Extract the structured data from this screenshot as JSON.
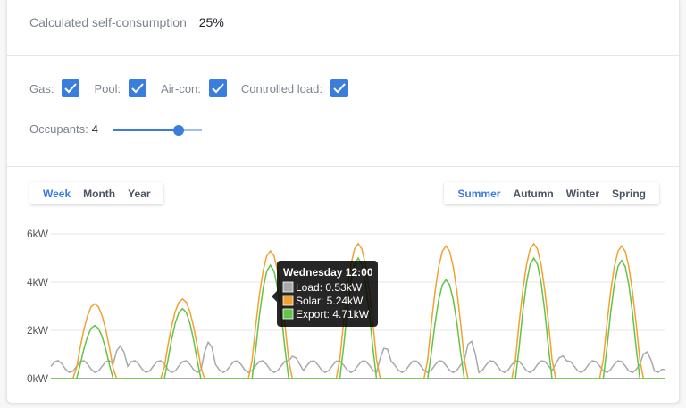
{
  "self_consumption": {
    "label": "Calculated self-consumption",
    "value": "25%"
  },
  "options": [
    {
      "label": "Gas:",
      "checked": true
    },
    {
      "label": "Pool:",
      "checked": true
    },
    {
      "label": "Air-con:",
      "checked": true
    },
    {
      "label": "Controlled load:",
      "checked": true
    }
  ],
  "occupants": {
    "label": "Occupants:",
    "value": "4",
    "slider_fraction": 0.75
  },
  "period_tabs": {
    "items": [
      "Week",
      "Month",
      "Year"
    ],
    "active": "Week"
  },
  "season_tabs": {
    "items": [
      "Summer",
      "Autumn",
      "Winter",
      "Spring"
    ],
    "active": "Summer"
  },
  "colors": {
    "accent": "#3b7ddd",
    "load": "#a9a9a9",
    "solar": "#f0a232",
    "export": "#63c447"
  },
  "chart_data": {
    "type": "line",
    "y_ticks": [
      "6kW",
      "4kW",
      "2kW",
      "0kW"
    ],
    "ylim": [
      0,
      6
    ],
    "days": 7,
    "series": [
      {
        "name": "Load",
        "daily_peaks_kw": [
          1.6,
          1.3,
          1.0,
          1.2,
          1.5,
          1.0,
          0.9
        ]
      },
      {
        "name": "Solar",
        "daily_peaks_kw": [
          3.1,
          3.3,
          5.3,
          5.6,
          5.5,
          5.6,
          5.5
        ]
      },
      {
        "name": "Export",
        "daily_peaks_kw": [
          2.2,
          2.9,
          4.7,
          5.0,
          4.1,
          5.0,
          4.9
        ]
      }
    ],
    "tooltip": {
      "title": "Wednesday 12:00",
      "rows": [
        "Load: 0.53kW",
        "Solar: 5.24kW",
        "Export: 4.71kW"
      ]
    }
  }
}
